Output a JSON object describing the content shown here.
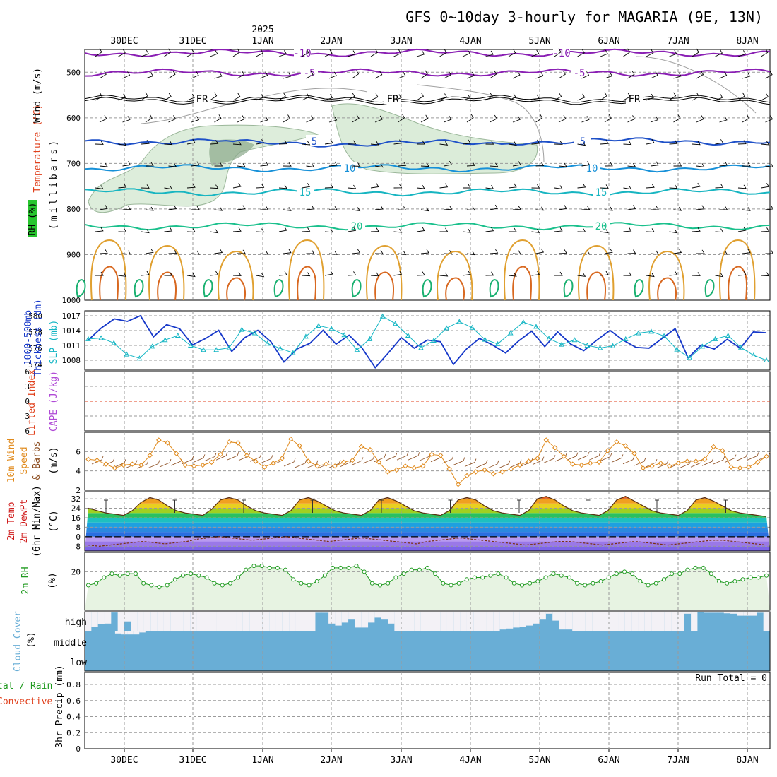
{
  "title": "GFS 0~10day 3-hourly for MAGARIA (9E, 13N)",
  "year_label": "2025",
  "colors": {
    "wind": "#000000",
    "temperature": "#e0401c",
    "rh": "#27c52e",
    "thickness": "#1537c9",
    "slp": "#14b6c4",
    "lifted_index": "#e0401c",
    "cape": "#b04ad6",
    "wind10": "#e08a1c",
    "barbs": "#8a4a1c",
    "t2m": "#d01c1c",
    "dewpt": "#d01c1c",
    "rh2m": "#1f9a1f",
    "cloud": "#69aed6",
    "precip_total": "#1f9a1f",
    "precip_conv": "#e0401c"
  },
  "panel_labels": {
    "upper": {
      "wind": "Wind (m/s)",
      "temp": "Temperature (°C)",
      "rh": "RH (%)",
      "axis": "(millibars)"
    },
    "slp": {
      "thickness": "1000-500mb",
      "thickness2": "Thickness (dm)",
      "slp": "SLP (mb)"
    },
    "cape": {
      "li": "Lifted Index",
      "cape": "CAPE (J/kg)"
    },
    "wind10": {
      "l1": "10m Wind",
      "l2": "Speed",
      "l3": "& Barbs",
      "unit": "(m/s)"
    },
    "temp2m": {
      "l1": "2m Temp",
      "l2": "2m DewPt",
      "l3": "(6hr Min/Max)",
      "unit": "(°C)"
    },
    "rh2m": {
      "l1": "2m RH",
      "unit": "(%)"
    },
    "cloud": {
      "l1": "Cloud Cover",
      "unit": "(%)",
      "high": "high",
      "middle": "middle",
      "low": "low"
    },
    "precip": {
      "l1": "tal / Rain",
      "l2": "Convective",
      "l3": "3hr Precip (mm)",
      "run_total": "Run Total = 0"
    }
  },
  "chart_data": [
    {
      "type": "line",
      "panel": "upper-air",
      "x": [
        "30DEC",
        "31DEC",
        "1JAN",
        "2JAN",
        "3JAN",
        "4JAN",
        "5JAN",
        "6JAN",
        "7JAN",
        "8JAN"
      ],
      "ylabel": "millibars",
      "yticks": [
        500,
        600,
        700,
        800,
        900,
        1000
      ],
      "ylim": [
        1000,
        450
      ],
      "isotherm_labels": [
        "-10",
        "-5",
        "FR",
        "5",
        "10",
        "15",
        "20"
      ]
    },
    {
      "type": "line",
      "panel": "thickness-slp",
      "thickness_ticks": [
        574,
        576,
        578,
        580
      ],
      "slp_ticks": [
        1008,
        1011,
        1014,
        1017
      ],
      "thickness_ylim": [
        573.3,
        580.6
      ],
      "slp_ylim": [
        1006,
        1018
      ],
      "series": [
        {
          "name": "1000-500mb Thickness (dm)",
          "values": [
            577.0,
            578.5,
            579.6,
            579.3,
            580.0,
            577.4,
            578.9,
            578.4,
            576.4,
            577.2,
            578.2,
            575.6,
            577.3,
            578.2,
            576.8,
            574.3,
            575.9,
            576.6,
            578.2,
            576.5,
            577.6,
            576.0,
            573.6,
            575.4,
            577.3,
            576.0,
            577.0,
            576.8,
            574.0,
            575.9,
            577.2,
            576.4,
            575.4,
            576.9,
            578.1,
            576.2,
            578.0,
            576.5,
            575.7,
            577.0,
            578.2,
            577.0,
            576.1,
            576.0,
            577.2,
            578.4,
            574.8,
            576.4,
            575.9,
            577.1,
            576.0,
            578.0,
            577.9
          ]
        },
        {
          "name": "SLP (mb)",
          "values": [
            1012.3,
            1012.5,
            1011.5,
            1009.2,
            1008.4,
            1010.8,
            1012.1,
            1013.0,
            1011.0,
            1010.1,
            1010.1,
            1010.5,
            1014.2,
            1013.5,
            1011.4,
            1010.4,
            1009.5,
            1012.8,
            1015.0,
            1014.4,
            1013.1,
            1010.1,
            1012.3,
            1016.9,
            1015.4,
            1013.0,
            1010.5,
            1012.0,
            1014.5,
            1015.8,
            1014.6,
            1012.2,
            1011.3,
            1013.5,
            1015.7,
            1014.8,
            1012.4,
            1011.2,
            1012.1,
            1011.0,
            1010.5,
            1010.9,
            1012.3,
            1013.5,
            1013.8,
            1012.9,
            1010.2,
            1008.5,
            1010.8,
            1012.3,
            1013.0,
            1010.6,
            1009.0,
            1008.0
          ]
        }
      ]
    },
    {
      "type": "line",
      "panel": "lifted-index-cape",
      "yticks": [
        -6,
        -3,
        0,
        3,
        6
      ],
      "ylim": [
        6,
        -6
      ],
      "reference_line": 0
    },
    {
      "type": "line",
      "panel": "wind10m",
      "yticks": [
        2,
        4,
        6
      ],
      "ylim": [
        2,
        8
      ],
      "series": [
        {
          "name": "10m Wind Speed",
          "values": [
            5.2,
            5.1,
            4.7,
            4.3,
            4.6,
            4.7,
            4.6,
            5.6,
            7.2,
            6.9,
            5.8,
            4.6,
            4.5,
            4.6,
            4.9,
            5.7,
            7.0,
            6.9,
            5.6,
            5.0,
            4.4,
            4.8,
            5.3,
            7.3,
            6.6,
            5.0,
            4.5,
            4.7,
            4.5,
            4.9,
            5.1,
            6.5,
            6.2,
            4.9,
            3.9,
            4.1,
            4.5,
            4.3,
            4.5,
            5.7,
            5.6,
            4.2,
            2.6,
            3.5,
            3.9,
            4.1,
            3.7,
            3.9,
            4.2,
            4.6,
            5.0,
            5.3,
            7.2,
            6.4,
            5.5,
            4.7,
            4.6,
            4.8,
            4.9,
            6.1,
            7.0,
            6.6,
            5.8,
            4.3,
            4.5,
            4.8,
            4.5,
            4.8,
            5.0,
            5.0,
            5.2,
            6.5,
            6.1,
            4.4,
            4.3,
            4.4,
            4.9,
            5.5
          ]
        }
      ]
    },
    {
      "type": "area",
      "panel": "temp2m",
      "yticks": [
        -8,
        0,
        8,
        16,
        24,
        32
      ],
      "ylim": [
        -12,
        38
      ],
      "series": [
        {
          "name": "2m Temp",
          "values": [
            24,
            22,
            20,
            19,
            18,
            22,
            29,
            33,
            31,
            26,
            22,
            20,
            19,
            18,
            23,
            31,
            33,
            31,
            26,
            22,
            20,
            19,
            18,
            22,
            31,
            33,
            30,
            26,
            22,
            20,
            19,
            18,
            22,
            31,
            33,
            30,
            26,
            22,
            20,
            19,
            18,
            22,
            31,
            33,
            31,
            26,
            22,
            20,
            19,
            18,
            22,
            32,
            34,
            31,
            26,
            22,
            20,
            19,
            18,
            22,
            31,
            34,
            30,
            26,
            22,
            20,
            19,
            18,
            22,
            31,
            33,
            30,
            26,
            22,
            20,
            19,
            18,
            17
          ]
        },
        {
          "name": "2m DewPt",
          "values": [
            -7,
            -8,
            -7,
            -6,
            -5,
            -4,
            -5,
            -6,
            -5,
            -4,
            -2,
            -1,
            0,
            -1,
            -2,
            -3,
            -2,
            -1,
            0,
            -1,
            -2,
            -3,
            -4,
            -3,
            -2,
            -1,
            -2,
            -3,
            -4,
            -5,
            -6,
            -4,
            -3,
            -2,
            -1,
            -2,
            -3,
            -4,
            -5,
            -6,
            -7,
            -6,
            -5,
            -4,
            -4,
            -5,
            -6,
            -7,
            -6,
            -5,
            -4,
            -5,
            -6,
            -7,
            -6,
            -5,
            -4,
            -3,
            -3,
            -4,
            -5,
            -6,
            -7
          ]
        }
      ]
    },
    {
      "type": "area",
      "panel": "rh2m",
      "yticks": [
        20
      ],
      "ylim": [
        0,
        30
      ],
      "series": [
        {
          "name": "2m RH",
          "values": [
            13,
            14,
            17,
            19,
            18,
            19,
            19,
            14,
            13,
            12,
            13,
            16,
            18,
            19,
            18,
            17,
            14,
            13,
            14,
            17,
            21,
            23,
            23,
            22,
            22,
            21,
            16,
            14,
            13,
            15,
            18,
            22,
            22,
            22,
            23,
            20,
            14,
            13,
            14,
            17,
            19,
            21,
            21,
            22,
            19,
            14,
            13,
            14,
            16,
            17,
            17,
            18,
            19,
            17,
            14,
            13,
            14,
            15,
            17,
            19,
            18,
            17,
            14,
            13,
            14,
            15,
            17,
            19,
            20,
            19,
            15,
            13,
            14,
            16,
            19,
            19,
            21,
            22,
            22,
            19,
            15,
            14,
            15,
            16,
            17,
            17,
            18
          ]
        }
      ]
    },
    {
      "type": "bar",
      "panel": "cloud-cover",
      "levels": [
        "high",
        "middle",
        "low"
      ],
      "ylim": [
        0,
        100
      ],
      "series": [
        {
          "name": "high",
          "values": [
            0,
            23,
            38,
            40,
            96,
            0,
            51,
            0,
            0,
            0,
            0,
            0,
            0,
            0,
            0,
            0,
            0,
            0,
            0,
            0,
            0,
            0,
            0,
            0,
            0,
            0,
            0,
            0,
            0,
            0,
            0,
            0,
            0,
            0,
            1,
            95,
            95,
            40,
            30,
            45,
            60,
            20,
            20,
            45,
            70,
            60,
            40,
            0,
            0,
            0,
            0,
            0,
            0,
            0,
            0,
            0,
            0,
            0,
            0,
            0,
            0,
            0,
            0,
            10,
            15,
            20,
            25,
            30,
            40,
            60,
            90,
            55,
            10,
            10,
            0,
            0,
            0,
            0,
            0,
            0,
            0,
            0,
            0,
            0,
            0,
            0,
            0,
            0,
            0,
            0,
            0,
            90,
            0,
            98,
            95,
            95,
            95,
            92,
            90,
            80,
            80,
            80,
            95,
            0
          ]
        },
        {
          "name": "middle",
          "values": [
            0,
            0,
            0,
            0,
            0,
            10,
            15,
            15,
            15,
            5,
            0,
            0,
            0,
            0,
            0,
            0,
            0,
            0,
            0,
            0,
            0,
            0,
            0,
            0,
            0,
            0,
            0,
            0,
            0,
            0,
            0,
            0,
            0,
            0,
            0,
            0,
            0,
            0,
            0,
            0,
            0,
            0,
            0,
            0,
            0,
            0,
            0,
            0,
            0,
            0,
            0,
            0,
            0,
            0,
            0,
            0,
            0,
            0,
            0,
            0,
            0,
            0,
            0,
            0,
            0,
            0,
            0,
            0,
            0,
            0,
            0,
            0,
            0,
            0,
            0,
            0,
            0,
            0,
            0,
            0,
            0,
            0,
            0,
            0,
            0,
            0,
            0,
            0,
            0,
            0,
            0,
            0,
            0,
            0,
            0,
            0,
            0,
            0,
            0,
            0,
            0,
            0,
            0,
            0,
            0,
            0,
            0,
            0,
            0,
            0,
            0,
            0,
            0
          ]
        }
      ]
    },
    {
      "type": "bar",
      "panel": "precip3hr",
      "yticks": [
        0,
        0.2,
        0.4,
        0.6,
        0.8
      ],
      "ylim": [
        0,
        0.95
      ],
      "series": [
        {
          "name": "Total / Rain",
          "values": []
        },
        {
          "name": "Convective",
          "values": []
        }
      ]
    }
  ]
}
